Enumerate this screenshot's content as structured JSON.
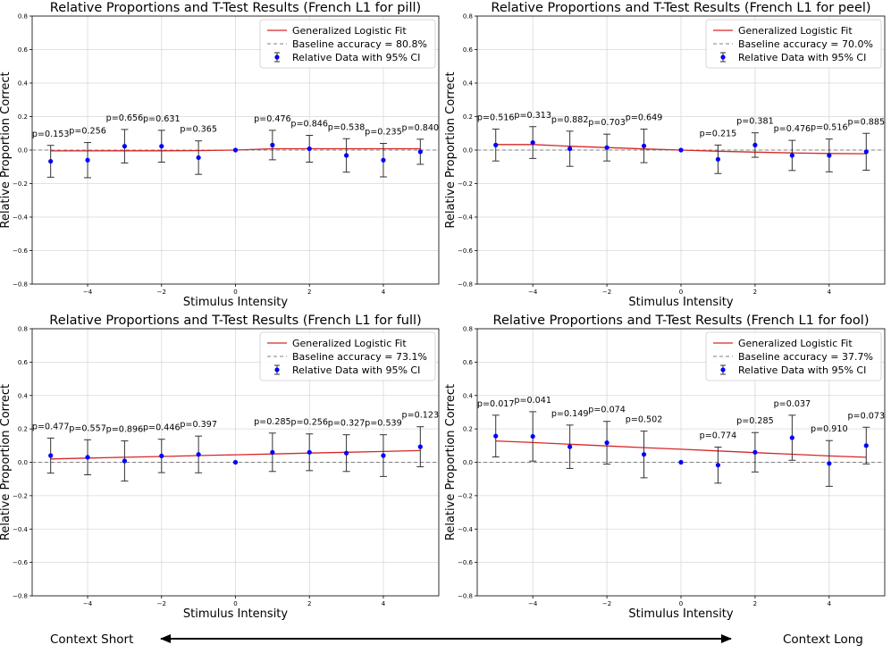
{
  "chart_data": [
    {
      "type": "scatter",
      "title": "Relative Proportions and T-Test Results (French L1 for pill)",
      "xlabel": "Stimulus Intensity",
      "ylabel": "Relative Proportion Correct",
      "xlim": [
        -5.5,
        5.5
      ],
      "ylim": [
        -0.8,
        0.8
      ],
      "xticks": [
        -4,
        -2,
        0,
        2,
        4
      ],
      "yticks": [
        -0.8,
        -0.6,
        -0.4,
        -0.2,
        0.0,
        0.2,
        0.4,
        0.6,
        0.8
      ],
      "grid": true,
      "legend_position": "top-right",
      "legend": {
        "fit": "Generalized Logistic Fit",
        "baseline": "Baseline accuracy = 80.8%",
        "data": "Relative Data with 95% CI"
      },
      "baseline": 0.0,
      "fit": [
        [
          -5,
          -0.005
        ],
        [
          -4,
          -0.005
        ],
        [
          -3,
          -0.004
        ],
        [
          -2,
          -0.004
        ],
        [
          -1,
          -0.003
        ],
        [
          0,
          0.0
        ],
        [
          1,
          0.008
        ],
        [
          2,
          0.008
        ],
        [
          3,
          0.008
        ],
        [
          4,
          0.008
        ],
        [
          5,
          0.008
        ]
      ],
      "points": [
        {
          "x": -5,
          "y": -0.067,
          "err": 0.095,
          "p": "p=0.153"
        },
        {
          "x": -4,
          "y": -0.06,
          "err": 0.105,
          "p": "p=0.256"
        },
        {
          "x": -3,
          "y": 0.023,
          "err": 0.1,
          "p": "p=0.656"
        },
        {
          "x": -2,
          "y": 0.023,
          "err": 0.095,
          "p": "p=0.631"
        },
        {
          "x": -1,
          "y": -0.045,
          "err": 0.1,
          "p": "p=0.365"
        },
        {
          "x": 0,
          "y": 0.0,
          "err": 0,
          "p": ""
        },
        {
          "x": 1,
          "y": 0.03,
          "err": 0.088,
          "p": "p=0.476"
        },
        {
          "x": 2,
          "y": 0.008,
          "err": 0.08,
          "p": "p=0.846"
        },
        {
          "x": 3,
          "y": -0.032,
          "err": 0.1,
          "p": "p=0.538"
        },
        {
          "x": 4,
          "y": -0.06,
          "err": 0.1,
          "p": "p=0.235"
        },
        {
          "x": 5,
          "y": -0.01,
          "err": 0.075,
          "p": "p=0.840"
        }
      ]
    },
    {
      "type": "scatter",
      "title": "Relative Proportions and T-Test Results (French L1 for peel)",
      "xlabel": "Stimulus Intensity",
      "ylabel": "Relative Proportion Correct",
      "xlim": [
        -5.5,
        5.5
      ],
      "ylim": [
        -0.8,
        0.8
      ],
      "xticks": [
        -4,
        -2,
        0,
        2,
        4
      ],
      "yticks": [
        -0.8,
        -0.6,
        -0.4,
        -0.2,
        0.0,
        0.2,
        0.4,
        0.6,
        0.8
      ],
      "grid": true,
      "legend_position": "top-right",
      "legend": {
        "fit": "Generalized Logistic Fit",
        "baseline": "Baseline accuracy = 70.0%",
        "data": "Relative Data with 95% CI"
      },
      "baseline": 0.0,
      "fit": [
        [
          -5,
          0.033
        ],
        [
          -4,
          0.033
        ],
        [
          -3,
          0.023
        ],
        [
          -2,
          0.015
        ],
        [
          -1,
          0.007
        ],
        [
          0,
          0.0
        ],
        [
          1,
          -0.007
        ],
        [
          2,
          -0.012
        ],
        [
          3,
          -0.017
        ],
        [
          4,
          -0.02
        ],
        [
          5,
          -0.022
        ]
      ],
      "points": [
        {
          "x": -5,
          "y": 0.03,
          "err": 0.095,
          "p": "p=0.516"
        },
        {
          "x": -4,
          "y": 0.045,
          "err": 0.095,
          "p": "p=0.313"
        },
        {
          "x": -3,
          "y": 0.008,
          "err": 0.105,
          "p": "p=0.882"
        },
        {
          "x": -2,
          "y": 0.015,
          "err": 0.08,
          "p": "p=0.703"
        },
        {
          "x": -1,
          "y": 0.025,
          "err": 0.1,
          "p": "p=0.649"
        },
        {
          "x": 0,
          "y": 0.0,
          "err": 0,
          "p": ""
        },
        {
          "x": 1,
          "y": -0.055,
          "err": 0.085,
          "p": "p=0.215"
        },
        {
          "x": 2,
          "y": 0.03,
          "err": 0.073,
          "p": "p=0.381"
        },
        {
          "x": 3,
          "y": -0.032,
          "err": 0.09,
          "p": "p=0.476"
        },
        {
          "x": 4,
          "y": -0.032,
          "err": 0.098,
          "p": "p=0.516"
        },
        {
          "x": 5,
          "y": -0.01,
          "err": 0.11,
          "p": "p=0.885"
        }
      ]
    },
    {
      "type": "scatter",
      "title": "Relative Proportions and T-Test Results (French L1 for full)",
      "xlabel": "Stimulus Intensity",
      "ylabel": "Relative Proportion Correct",
      "xlim": [
        -5.5,
        5.5
      ],
      "ylim": [
        -0.8,
        0.8
      ],
      "xticks": [
        -4,
        -2,
        0,
        2,
        4
      ],
      "yticks": [
        -0.8,
        -0.6,
        -0.4,
        -0.2,
        0.0,
        0.2,
        0.4,
        0.6,
        0.8
      ],
      "grid": true,
      "legend_position": "top-right",
      "legend": {
        "fit": "Generalized Logistic Fit",
        "baseline": "Baseline accuracy = 73.1%",
        "data": "Relative Data with 95% CI"
      },
      "baseline": 0.0,
      "fit": [
        [
          -5,
          0.02
        ],
        [
          -4,
          0.025
        ],
        [
          -3,
          0.03
        ],
        [
          -2,
          0.035
        ],
        [
          -1,
          0.04
        ],
        [
          0,
          0.045
        ],
        [
          1,
          0.05
        ],
        [
          2,
          0.055
        ],
        [
          3,
          0.06
        ],
        [
          4,
          0.065
        ],
        [
          5,
          0.07
        ]
      ],
      "points": [
        {
          "x": -5,
          "y": 0.04,
          "err": 0.105,
          "p": "p=0.477"
        },
        {
          "x": -4,
          "y": 0.03,
          "err": 0.105,
          "p": "p=0.557"
        },
        {
          "x": -3,
          "y": 0.008,
          "err": 0.12,
          "p": "p=0.896"
        },
        {
          "x": -2,
          "y": 0.038,
          "err": 0.1,
          "p": "p=0.446"
        },
        {
          "x": -1,
          "y": 0.047,
          "err": 0.11,
          "p": "p=0.397"
        },
        {
          "x": 0,
          "y": 0.0,
          "err": 0,
          "p": ""
        },
        {
          "x": 1,
          "y": 0.06,
          "err": 0.115,
          "p": "p=0.285"
        },
        {
          "x": 2,
          "y": 0.06,
          "err": 0.11,
          "p": "p=0.256"
        },
        {
          "x": 3,
          "y": 0.055,
          "err": 0.11,
          "p": "p=0.327"
        },
        {
          "x": 4,
          "y": 0.04,
          "err": 0.125,
          "p": "p=0.539"
        },
        {
          "x": 5,
          "y": 0.093,
          "err": 0.12,
          "p": "p=0.123"
        }
      ]
    },
    {
      "type": "scatter",
      "title": "Relative Proportions and T-Test Results (French L1 for fool)",
      "xlabel": "Stimulus Intensity",
      "ylabel": "Relative Proportion Correct",
      "xlim": [
        -5.5,
        5.5
      ],
      "ylim": [
        -0.8,
        0.8
      ],
      "xticks": [
        -4,
        -2,
        0,
        2,
        4
      ],
      "yticks": [
        -0.8,
        -0.6,
        -0.4,
        -0.2,
        0.0,
        0.2,
        0.4,
        0.6,
        0.8
      ],
      "grid": true,
      "legend_position": "top-right",
      "legend": {
        "fit": "Generalized Logistic Fit",
        "baseline": "Baseline accuracy = 37.7%",
        "data": "Relative Data with 95% CI"
      },
      "baseline": 0.0,
      "fit": [
        [
          -5,
          0.128
        ],
        [
          -4,
          0.118
        ],
        [
          -3,
          0.108
        ],
        [
          -2,
          0.098
        ],
        [
          -1,
          0.088
        ],
        [
          0,
          0.078
        ],
        [
          1,
          0.068
        ],
        [
          2,
          0.058
        ],
        [
          3,
          0.048
        ],
        [
          4,
          0.038
        ],
        [
          5,
          0.03
        ]
      ],
      "points": [
        {
          "x": -5,
          "y": 0.157,
          "err": 0.125,
          "p": "p=0.017"
        },
        {
          "x": -4,
          "y": 0.155,
          "err": 0.148,
          "p": "p=0.041"
        },
        {
          "x": -3,
          "y": 0.093,
          "err": 0.13,
          "p": "p=0.149"
        },
        {
          "x": -2,
          "y": 0.117,
          "err": 0.128,
          "p": "p=0.074"
        },
        {
          "x": -1,
          "y": 0.047,
          "err": 0.14,
          "p": "p=0.502"
        },
        {
          "x": 0,
          "y": 0.0,
          "err": 0,
          "p": ""
        },
        {
          "x": 1,
          "y": -0.017,
          "err": 0.108,
          "p": "p=0.774"
        },
        {
          "x": 2,
          "y": 0.06,
          "err": 0.118,
          "p": "p=0.285"
        },
        {
          "x": 3,
          "y": 0.147,
          "err": 0.135,
          "p": "p=0.037"
        },
        {
          "x": 4,
          "y": -0.007,
          "err": 0.137,
          "p": "p=0.910"
        },
        {
          "x": 5,
          "y": 0.1,
          "err": 0.11,
          "p": "p=0.073"
        }
      ]
    }
  ],
  "context": {
    "left_label": "Context Short",
    "right_label": "Context Long"
  },
  "colors": {
    "fit_line": "#d62728",
    "points": "#0000ff",
    "baseline": "#808080",
    "errorbar": "#333333",
    "grid": "#d9d9d9"
  }
}
